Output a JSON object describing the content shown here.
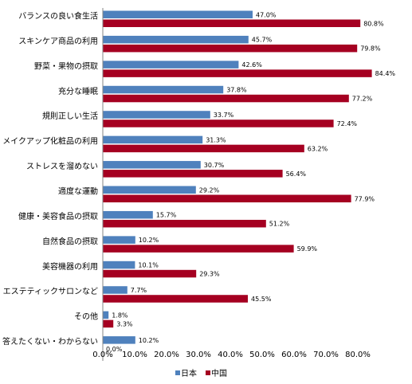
{
  "chart_data": {
    "type": "bar",
    "orientation": "horizontal",
    "categories": [
      "バランスの良い食生活",
      "スキンケア商品の利用",
      "野菜・果物の摂取",
      "充分な睡眠",
      "規則正しい生活",
      "メイクアップ化粧品の利用",
      "ストレスを溜めない",
      "適度な運動",
      "健康・美容食品の摂取",
      "自然食品の摂取",
      "美容機器の利用",
      "エステティックサロンなど",
      "その他",
      "答えたくない・わからない"
    ],
    "series": [
      {
        "name": "日本",
        "color": "#4F81BD",
        "values": [
          47.0,
          45.7,
          42.6,
          37.8,
          33.7,
          31.3,
          30.7,
          29.2,
          15.7,
          10.2,
          10.1,
          7.7,
          1.8,
          10.2
        ],
        "labels": [
          "47.0%",
          "45.7%",
          "42.6%",
          "37.8%",
          "33.7%",
          "31.3%",
          "30.7%",
          "29.2%",
          "15.7%",
          "10.2%",
          "10.1%",
          "7.7%",
          "1.8%",
          "10.2%"
        ]
      },
      {
        "name": "中国",
        "color": "#A50021",
        "values": [
          80.8,
          79.8,
          84.4,
          77.2,
          72.4,
          63.2,
          56.4,
          77.9,
          51.2,
          59.9,
          29.3,
          45.5,
          3.3,
          0.0
        ],
        "labels": [
          "80.8%",
          "79.8%",
          "84.4%",
          "77.2%",
          "72.4%",
          "63.2%",
          "56.4%",
          "77.9%",
          "51.2%",
          "59.9%",
          "29.3%",
          "45.5%",
          "3.3%",
          "0.0%"
        ]
      }
    ],
    "xlim": [
      0,
      90
    ],
    "xticks": [
      0,
      10,
      20,
      30,
      40,
      50,
      60,
      70,
      80
    ],
    "xtick_labels": [
      "0.0%",
      "10.0%",
      "20.0%",
      "30.0%",
      "40.0%",
      "50.0%",
      "60.0%",
      "70.0%",
      "80.0%"
    ],
    "grid": false,
    "legend": "bottom",
    "title": "",
    "xlabel": "",
    "ylabel": ""
  }
}
